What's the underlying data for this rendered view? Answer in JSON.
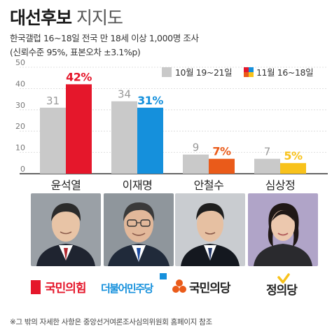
{
  "header": {
    "title_bold": "대선후보",
    "title_light": "지지도",
    "subtitle": "한국갤럽 16~18일 전국 만 18세 이상 1,000명 조사",
    "note": "(신뢰수준 95%, 표본오차 ±3.1%p)"
  },
  "chart_data": {
    "type": "bar",
    "categories": [
      "윤석열",
      "이재명",
      "안철수",
      "심상정"
    ],
    "series": [
      {
        "name": "10월 19~21일",
        "values": [
          31,
          34,
          9,
          7
        ],
        "labels": [
          "31",
          "34",
          "9",
          "7"
        ]
      },
      {
        "name": "11월 16~18일",
        "values": [
          42,
          31,
          7,
          5
        ],
        "labels": [
          "42%",
          "31%",
          "7%",
          "5%"
        ]
      }
    ],
    "ylim": [
      0,
      50
    ],
    "yticks": [
      "0",
      "10",
      "20",
      "30",
      "40",
      "50"
    ],
    "grid": true,
    "legend": "top-right",
    "colors": {
      "previous": "#c9c9c9",
      "current": [
        "#e5172b",
        "#1590dc",
        "#ea5b1a",
        "#f8c21b"
      ],
      "prev_label": "#999999"
    }
  },
  "candidates": [
    {
      "name": "윤석열",
      "party": "국민의힘",
      "party_color": "#e5172b",
      "logo": "ppp-logo"
    },
    {
      "name": "이재명",
      "party": "더불어민주당",
      "party_color": "#1590dc",
      "logo": "dp-logo"
    },
    {
      "name": "안철수",
      "party": "국민의당",
      "party_color": "#ea5b1a",
      "logo": "pp-logo"
    },
    {
      "name": "심상정",
      "party": "정의당",
      "party_color": "#f8c21b",
      "logo": "jp-logo"
    }
  ],
  "footnote": "※그 밖의 자세한 사항은 중앙선거여론조사심의위원회 홈페이지 참조"
}
